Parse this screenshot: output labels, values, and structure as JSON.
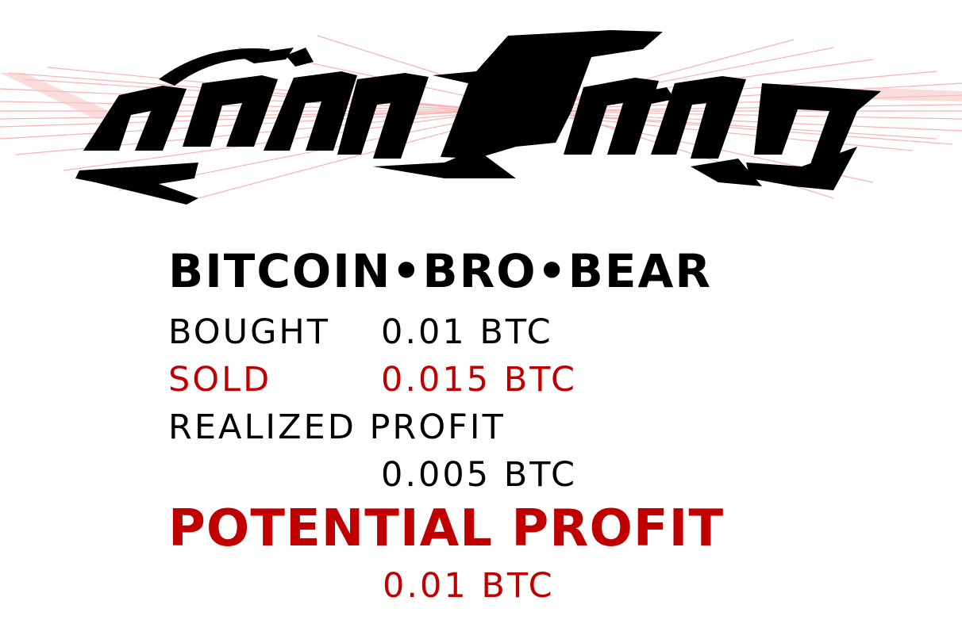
{
  "logo": {
    "description_icon": "stylized-blackletter-logo-icon",
    "colors": {
      "ink": "#000000",
      "rays": "#f5a5a5"
    }
  },
  "headline": "BITCOIN•BRO•BEAR",
  "trades": {
    "bought_label": "BOUGHT",
    "bought_value": "0.01 BTC",
    "sold_label": "SOLD",
    "sold_value": "0.015 BTC"
  },
  "realized": {
    "label": "REALIZED PROFIT",
    "value": "0.005 BTC"
  },
  "potential": {
    "label": "POTENTIAL PROFIT",
    "value": "0.01 BTC"
  },
  "colors": {
    "accent": "#c00000",
    "text": "#000000"
  }
}
